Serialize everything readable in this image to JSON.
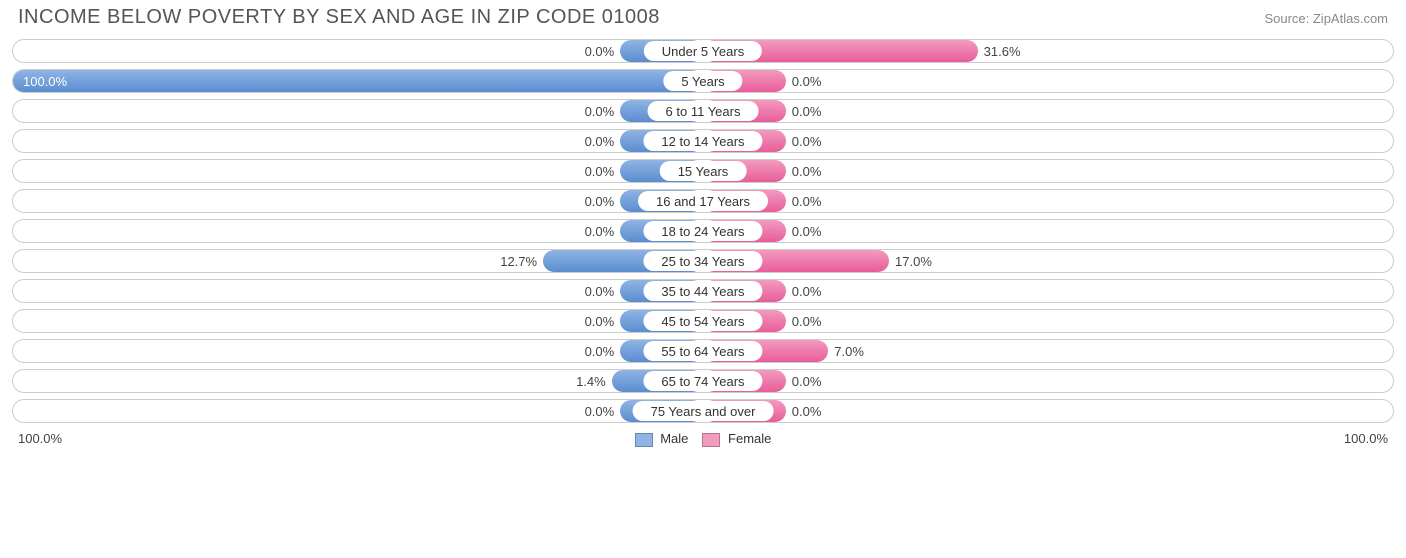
{
  "title": "INCOME BELOW POVERTY BY SEX AND AGE IN ZIP CODE 01008",
  "source": "Source: ZipAtlas.com",
  "axis": {
    "left": "100.0%",
    "right": "100.0%"
  },
  "legend": {
    "male": "Male",
    "female": "Female"
  },
  "colors": {
    "male_fill": "#8fb4e3",
    "male_border": "#5a8dd0",
    "female_fill": "#f39abf",
    "female_border": "#e85d9a",
    "track_border": "#cccccc",
    "background": "#ffffff",
    "text": "#444444"
  },
  "base_bar_pct": 12,
  "max_axis": 100,
  "rows": [
    {
      "label": "Under 5 Years",
      "male": 0.0,
      "female": 31.6
    },
    {
      "label": "5 Years",
      "male": 100.0,
      "female": 0.0,
      "male_label_inside": true
    },
    {
      "label": "6 to 11 Years",
      "male": 0.0,
      "female": 0.0
    },
    {
      "label": "12 to 14 Years",
      "male": 0.0,
      "female": 0.0
    },
    {
      "label": "15 Years",
      "male": 0.0,
      "female": 0.0
    },
    {
      "label": "16 and 17 Years",
      "male": 0.0,
      "female": 0.0
    },
    {
      "label": "18 to 24 Years",
      "male": 0.0,
      "female": 0.0
    },
    {
      "label": "25 to 34 Years",
      "male": 12.7,
      "female": 17.0
    },
    {
      "label": "35 to 44 Years",
      "male": 0.0,
      "female": 0.0
    },
    {
      "label": "45 to 54 Years",
      "male": 0.0,
      "female": 0.0
    },
    {
      "label": "55 to 64 Years",
      "male": 0.0,
      "female": 7.0
    },
    {
      "label": "65 to 74 Years",
      "male": 1.4,
      "female": 0.0
    },
    {
      "label": "75 Years and over",
      "male": 0.0,
      "female": 0.0
    }
  ]
}
